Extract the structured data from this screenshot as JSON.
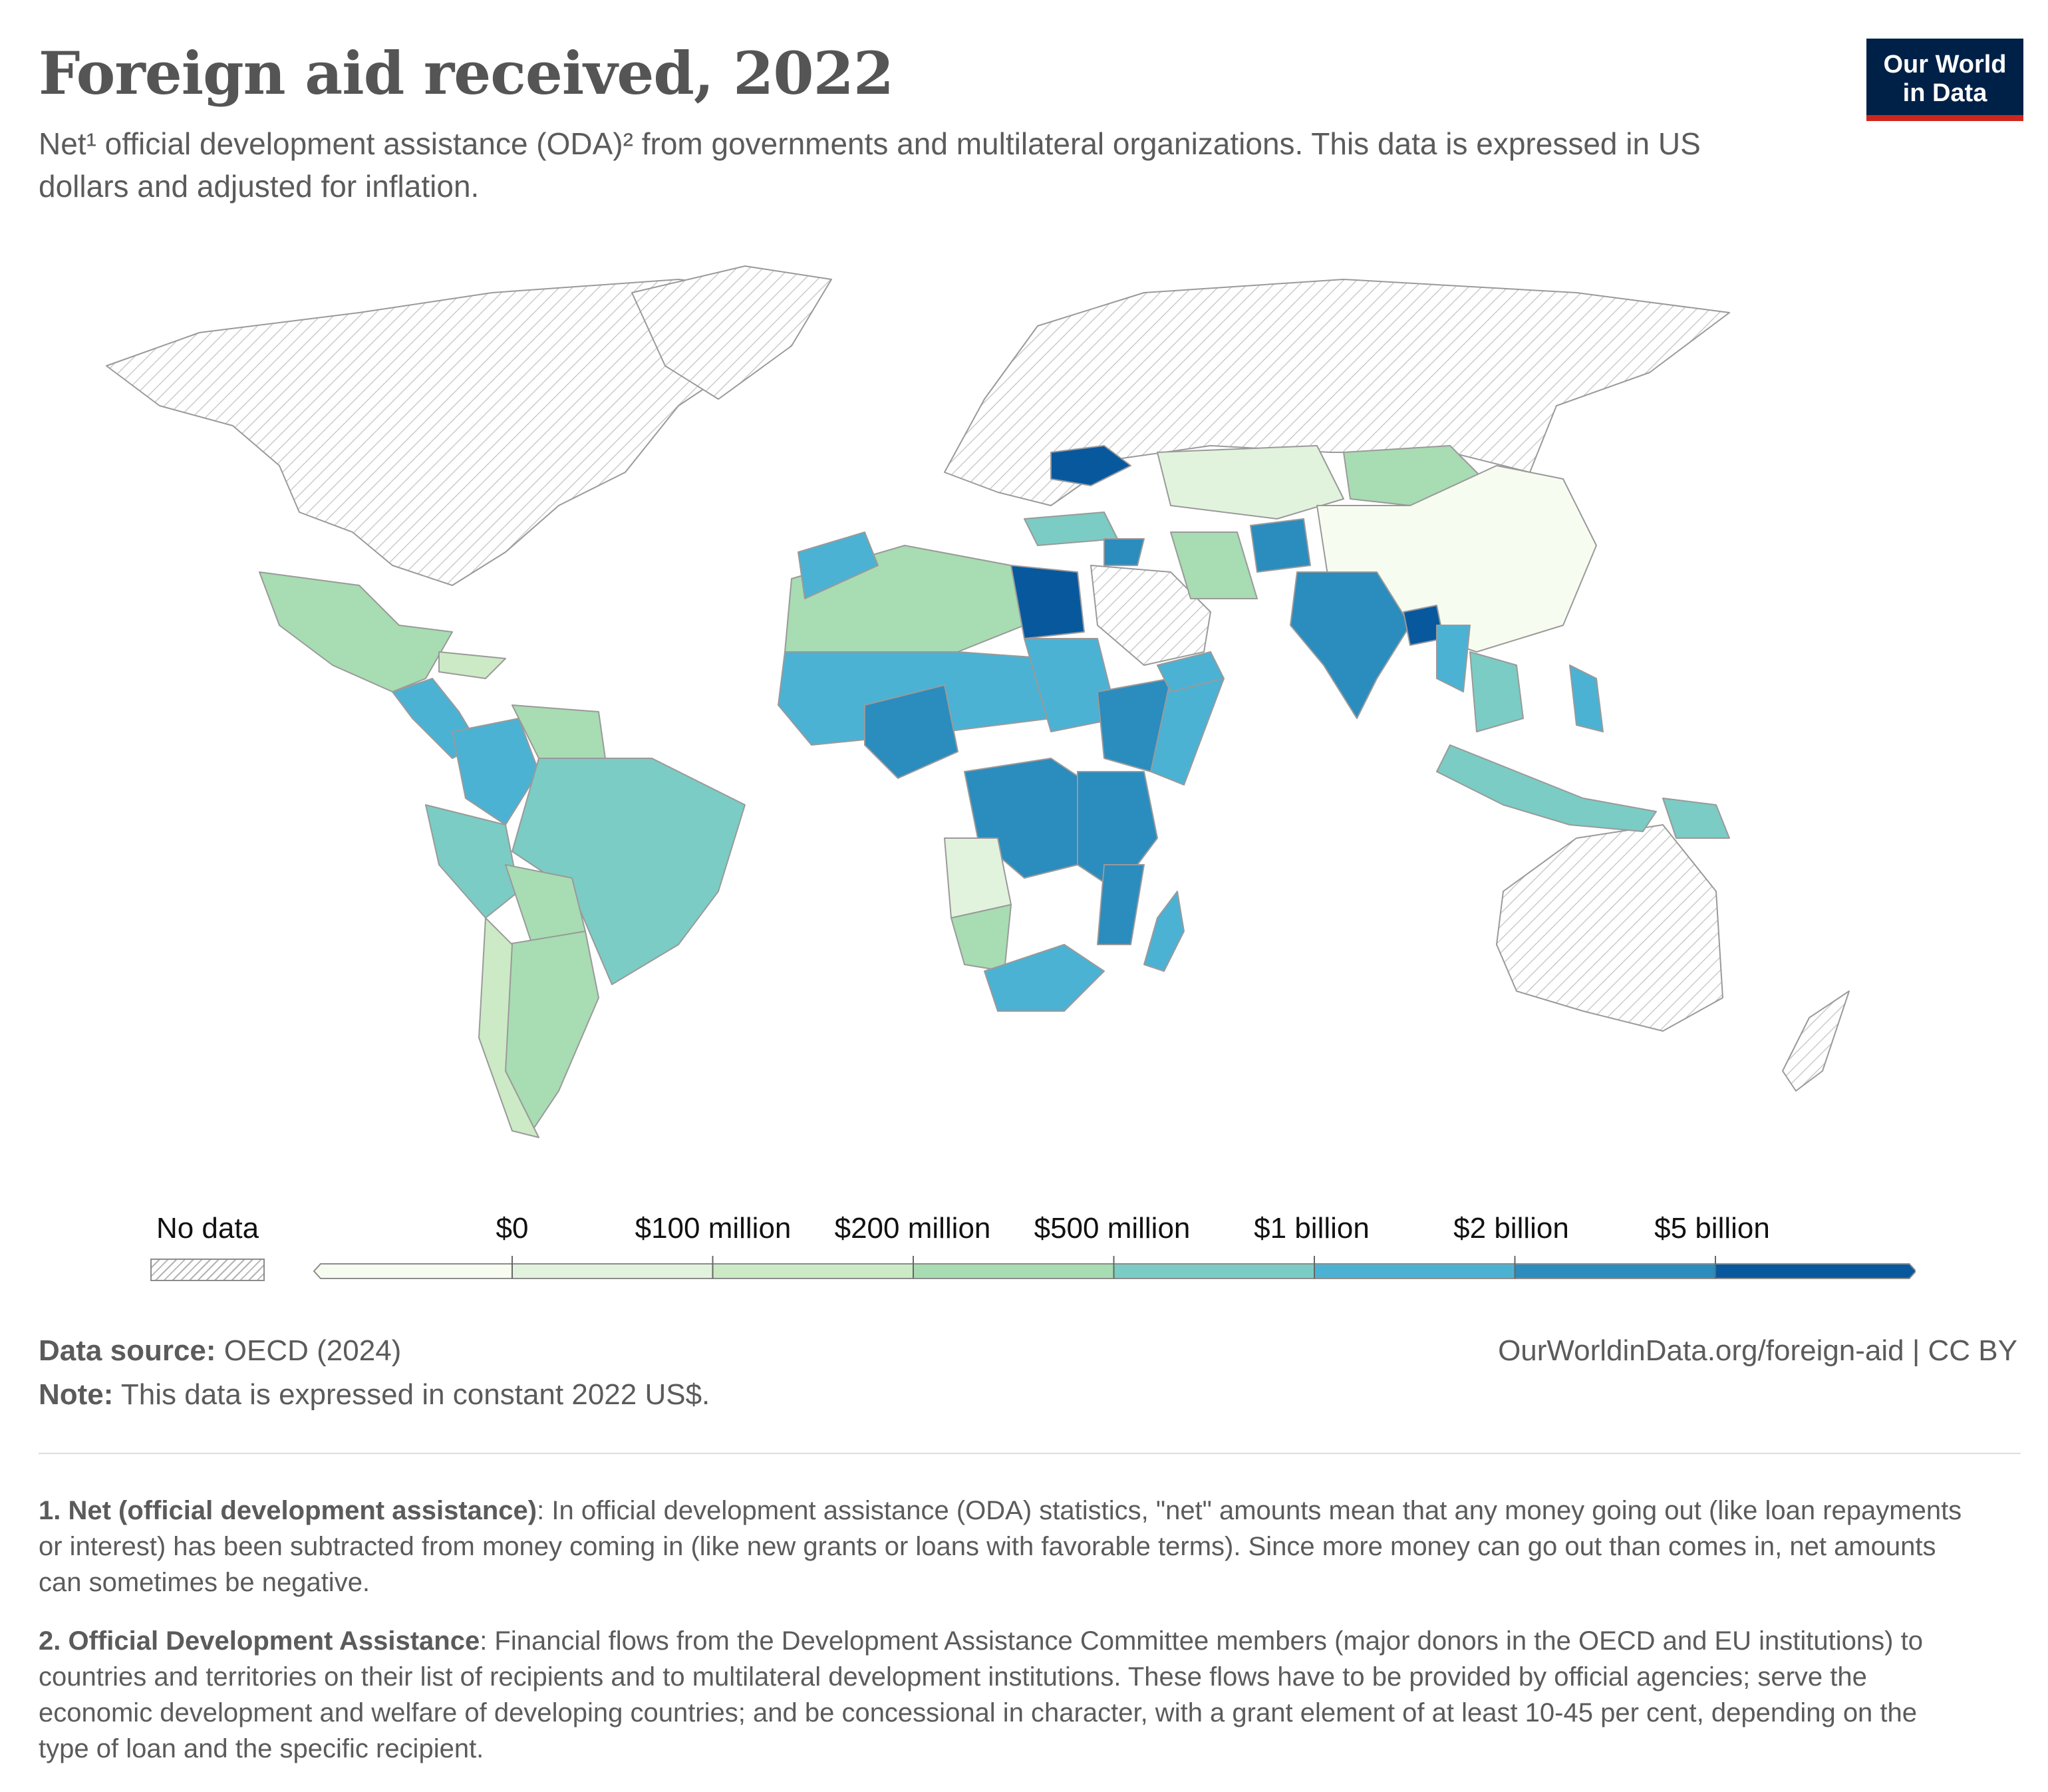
{
  "header": {
    "title": "Foreign aid received, 2022",
    "subtitle": "Net¹ official development assistance (ODA)² from governments and multilateral organizations. This data is expressed in US dollars and adjusted for inflation.",
    "logo_line1": "Our World",
    "logo_line2": "in Data"
  },
  "legend": {
    "no_data_label": "No data",
    "bins": [
      {
        "label": "$0",
        "color": "#e2f3dd"
      },
      {
        "label": "$100 million",
        "color": "#cceac5"
      },
      {
        "label": "$200 million",
        "color": "#a8dcb2"
      },
      {
        "label": "$500 million",
        "color": "#7bccc4"
      },
      {
        "label": "$1 billion",
        "color": "#4bb2d4"
      },
      {
        "label": "$2 billion",
        "color": "#2b8cbe"
      },
      {
        "label": "$5 billion",
        "color": "#08589e"
      }
    ],
    "below_zero_color": "#f7fcf0",
    "no_data_color": "#d3d3d3"
  },
  "footer": {
    "source_label": "Data source:",
    "source_text": "OECD (2024)",
    "note_label": "Note:",
    "note_text": "This data is expressed in constant 2022 US$.",
    "url": "OurWorldinData.org/foreign-aid | CC BY"
  },
  "footnotes": [
    {
      "label": "1. Net (official development assistance)",
      "text": ": In official development assistance (ODA) statistics, \"net\" amounts mean that any money going out (like loan repayments or interest) has been subtracted from money coming in (like new grants or loans with favorable terms). Since more money can go out than comes in, net amounts can sometimes be negative."
    },
    {
      "label": "2. Official Development Assistance",
      "text": ": Financial flows from the Development Assistance Committee members (major donors in the OECD and EU institutions) to countries and territories on their list of recipients and to multilateral development institutions. These flows have to be provided by official agencies; serve the economic development and welfare of developing countries; and be concessional in character, with a grant element of at least 10-45 per cent, depending on the type of loan and the specific recipient."
    }
  ]
}
